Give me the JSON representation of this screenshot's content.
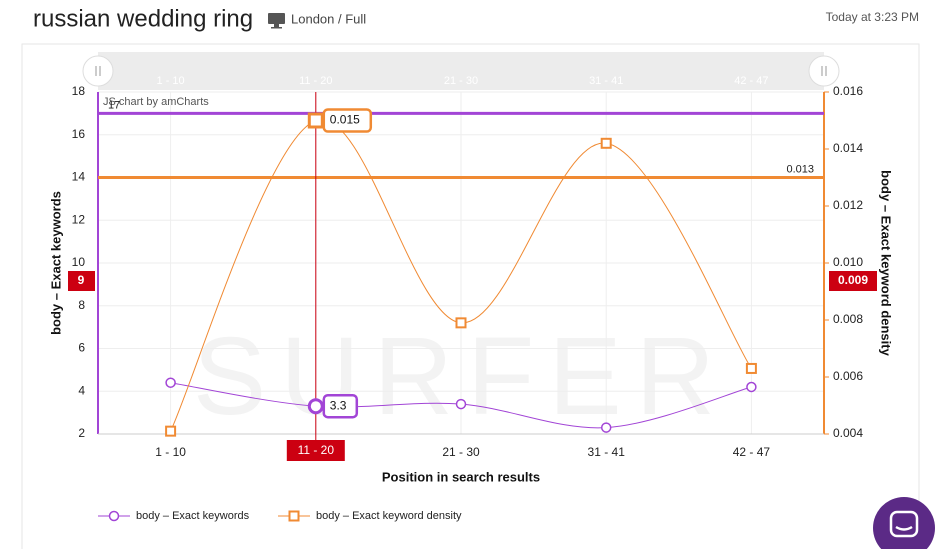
{
  "header": {
    "title": "russian wedding ring",
    "location": "London / Full",
    "timestamp": "Today at 3:23 PM"
  },
  "chart_data": {
    "type": "line",
    "credit": "JS chart by amCharts",
    "watermark": "SURFER",
    "x_label": "Position in search results",
    "y_label": "body – Exact keywords",
    "y2_label": "body – Exact keyword density",
    "categories": [
      "1 - 10",
      "11 - 20",
      "21 - 30",
      "31 - 41",
      "42 - 47"
    ],
    "series": [
      {
        "name": "body – Exact keywords",
        "color": "#a245d6",
        "marker": "circle",
        "values": [
          4.4,
          3.3,
          3.4,
          2.3,
          4.2
        ]
      },
      {
        "name": "body – Exact keyword density",
        "color": "#f08a33",
        "marker": "square",
        "axis": "y2",
        "values": [
          0.0041,
          0.015,
          0.0079,
          0.0142,
          0.0063
        ]
      }
    ],
    "ylim": [
      2,
      18
    ],
    "yticks": [
      2,
      4,
      6,
      8,
      10,
      12,
      14,
      16,
      18
    ],
    "y2lim": [
      0.004,
      0.016
    ],
    "y2ticks": [
      0.004,
      0.006,
      0.008,
      {
        "value": 0.01,
        "label": "0.010"
      },
      0.012,
      0.014,
      0.016
    ],
    "guides": [
      {
        "axis": "y",
        "value": 17,
        "color": "#a245d6"
      },
      {
        "axis": "y2",
        "value": 0.013,
        "color": "#f08a33"
      }
    ],
    "cursor": {
      "x": "11 - 20",
      "y": 9,
      "y2": 0.009,
      "color": "#cc0011"
    },
    "grid": true,
    "legend": "bottom"
  }
}
